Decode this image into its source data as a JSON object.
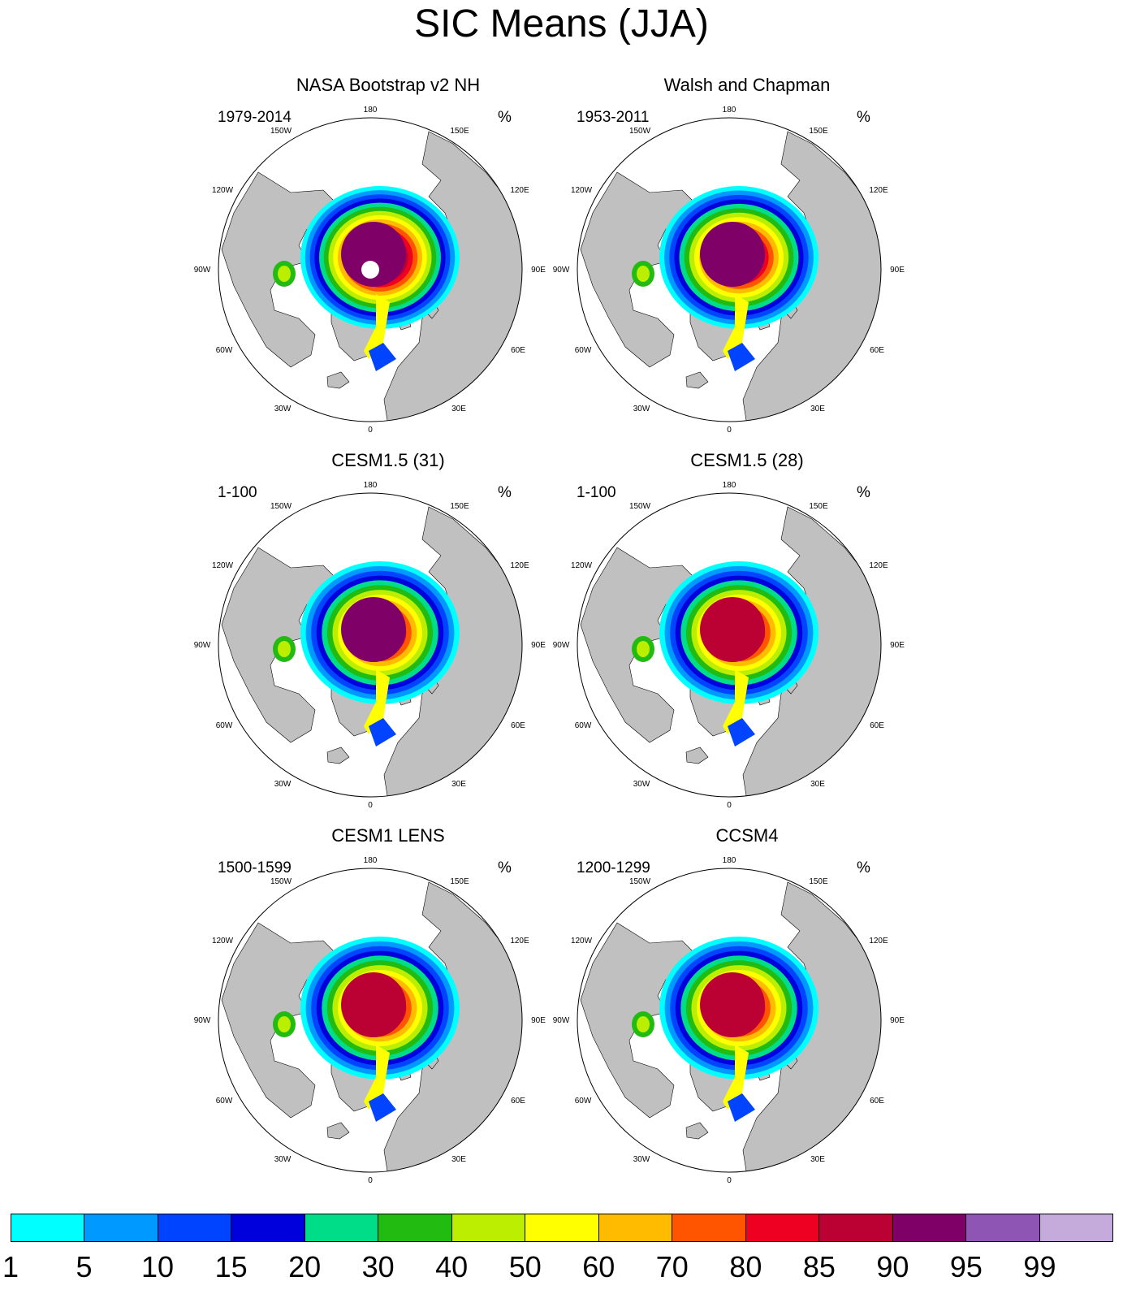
{
  "title": "SIC Means (JJA)",
  "map": {
    "lon_labels": {
      "180": "180",
      "150W": "150W",
      "150E": "150E",
      "120W": "120W",
      "120E": "120E",
      "90W": "90W",
      "90E": "90E",
      "60W": "60W",
      "60E": "60E",
      "30W": "30W",
      "30E": "30E",
      "0": "0"
    },
    "colors": {
      "land": "#c0c0c0",
      "ocean": "#ffffff"
    }
  },
  "panels": [
    {
      "title": "NASA Bootstrap v2 NH",
      "period": "1979-2014",
      "units": "%",
      "core_level": 12,
      "max_level": 14,
      "pole_hole": true
    },
    {
      "title": "Walsh and Chapman",
      "period": "1953-2011",
      "units": "%",
      "core_level": 12,
      "max_level": 13,
      "pole_hole": false
    },
    {
      "title": "CESM1.5 (31)",
      "period": "1-100",
      "units": "%",
      "core_level": 12,
      "max_level": 12,
      "pole_hole": false
    },
    {
      "title": "CESM1.5 (28)",
      "period": "1-100",
      "units": "%",
      "core_level": 11,
      "max_level": 12,
      "pole_hole": false
    },
    {
      "title": "CESM1 LENS",
      "period": "1500-1599",
      "units": "%",
      "core_level": 11,
      "max_level": 12,
      "pole_hole": false
    },
    {
      "title": "CCSM4",
      "period": "1200-1299",
      "units": "%",
      "core_level": 11,
      "max_level": 12,
      "pole_hole": false
    }
  ],
  "colorbar": {
    "labels": [
      "1",
      "5",
      "10",
      "15",
      "20",
      "30",
      "40",
      "50",
      "60",
      "70",
      "80",
      "85",
      "90",
      "95",
      "99"
    ],
    "colors": [
      "#00ffff",
      "#0099ff",
      "#0044ff",
      "#0000dd",
      "#00dd88",
      "#22bb11",
      "#bbee00",
      "#ffff00",
      "#ffbb00",
      "#ff5500",
      "#ee0022",
      "#bb0033",
      "#7f0066",
      "#8f55b5",
      "#c5aadc"
    ]
  }
}
